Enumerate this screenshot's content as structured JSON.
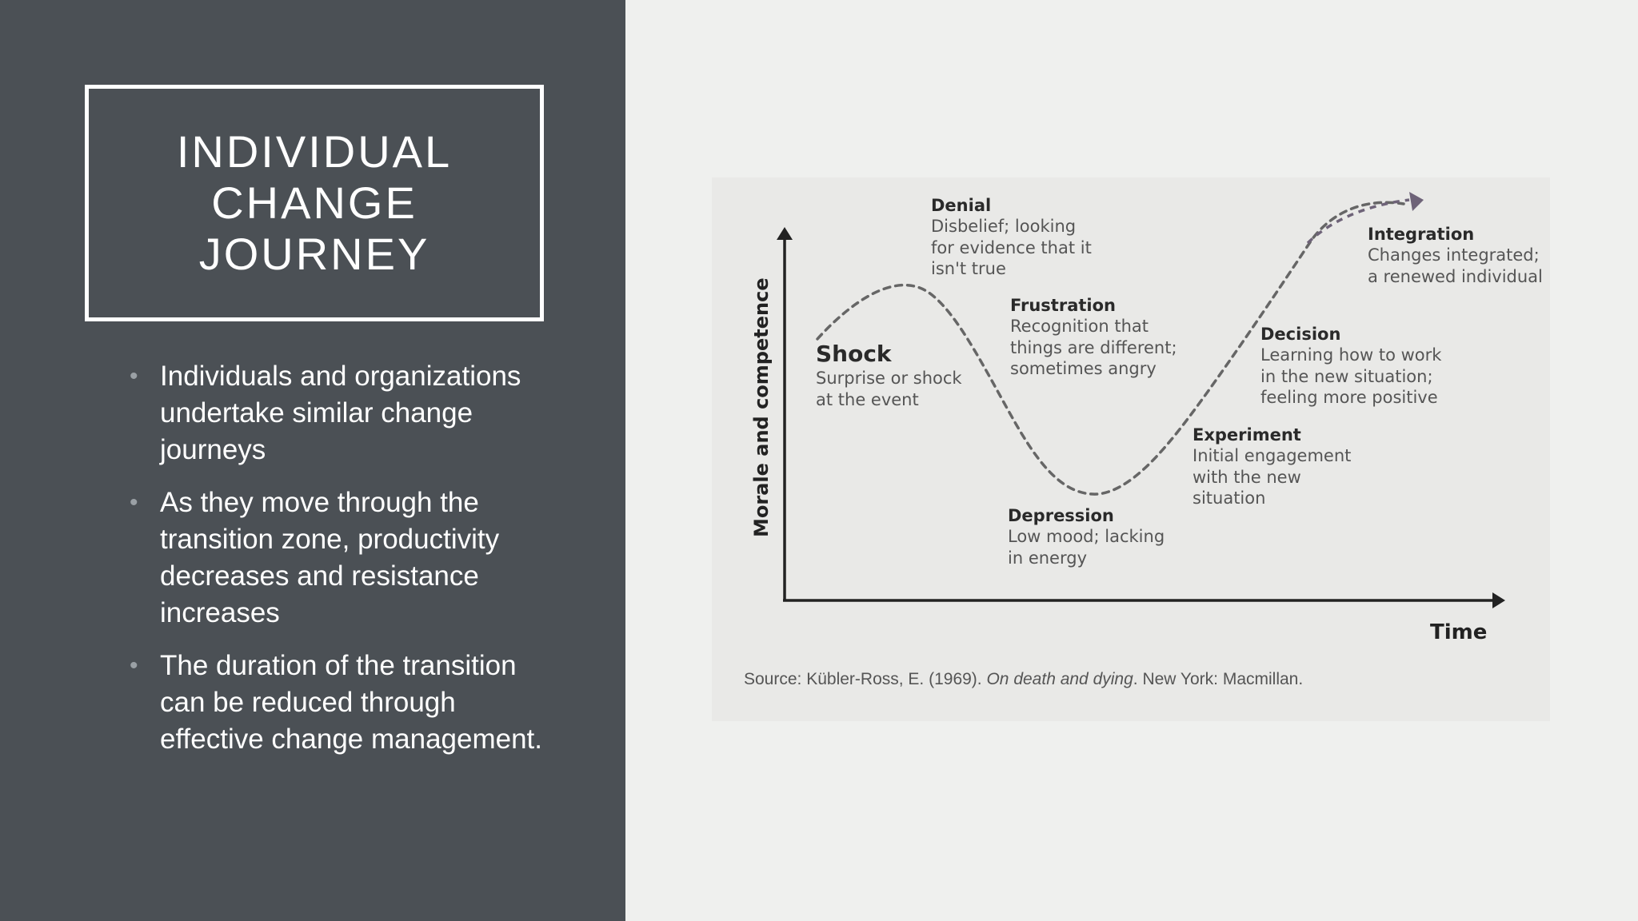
{
  "slide": {
    "title": "INDIVIDUAL\nCHANGE\nJOURNEY",
    "bullets": [
      "Individuals and organizations undertake similar change journeys",
      "As they move through the transition zone, productivity decreases and resistance increases",
      "The duration of the transition can be reduced through effective change management."
    ]
  },
  "diagram": {
    "y_axis_label": "Morale and competence",
    "x_axis_label": "Time",
    "stages": [
      {
        "title": "Shock",
        "desc": "Surprise or shock\nat the event"
      },
      {
        "title": "Denial",
        "desc": "Disbelief; looking\nfor evidence that it\nisn't true"
      },
      {
        "title": "Frustration",
        "desc": "Recognition that\nthings are different;\nsometimes angry"
      },
      {
        "title": "Depression",
        "desc": "Low mood; lacking\nin energy"
      },
      {
        "title": "Experiment",
        "desc": "Initial engagement\nwith the new\nsituation"
      },
      {
        "title": "Decision",
        "desc": "Learning how to work\nin the new situation;\nfeeling more positive"
      },
      {
        "title": "Integration",
        "desc": "Changes integrated;\na renewed individual"
      }
    ],
    "source_prefix": "Source: Kübler-Ross, E. (1969). ",
    "source_italic": "On death and dying",
    "source_suffix": ". New York: Macmillan."
  },
  "colors": {
    "left_panel": "#4b5055",
    "right_background": "#eff0ee",
    "diagram_card": "#e9e9e7",
    "curve": "#666666",
    "arrow_head": "#6e6378"
  }
}
